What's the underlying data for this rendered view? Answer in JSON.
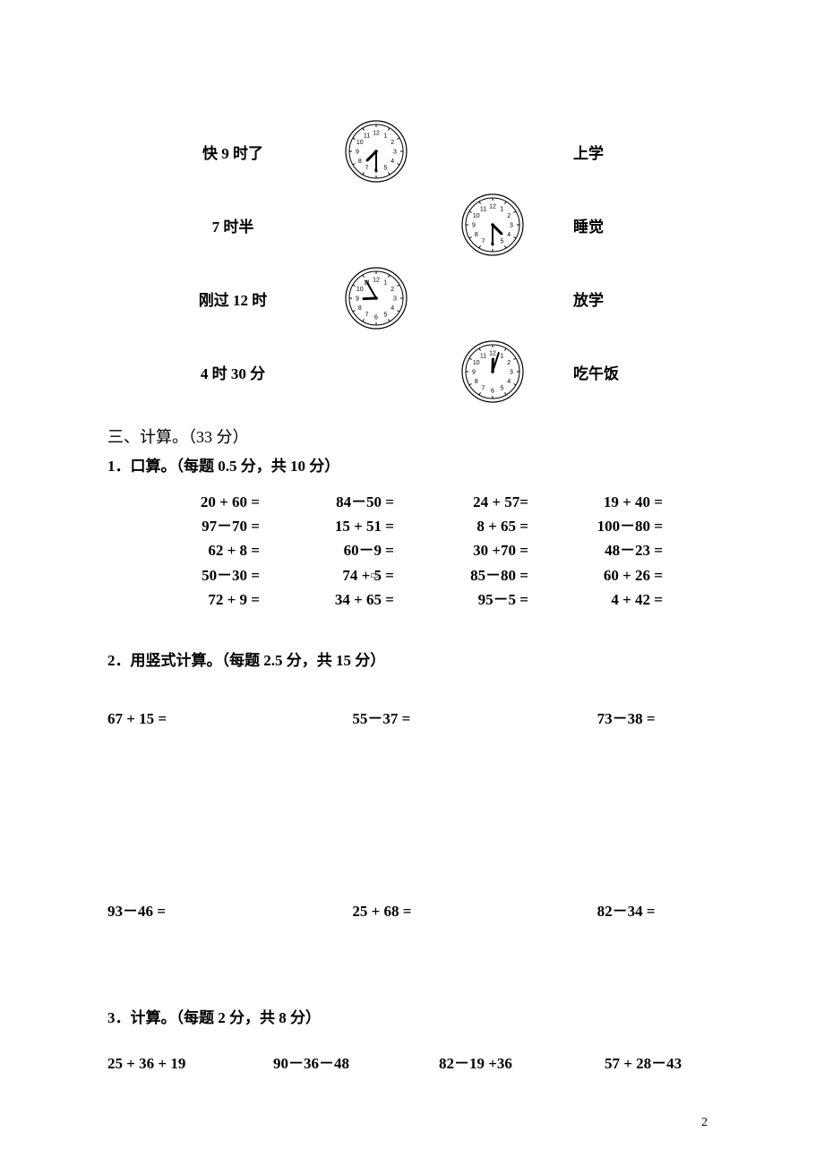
{
  "matching": {
    "row1": {
      "left": "快 9 时了",
      "right": "上学",
      "clockA": {
        "hour": 7,
        "minute": 30
      }
    },
    "row2": {
      "left": "7 时半",
      "right": "睡觉",
      "clockB": {
        "hour": 4,
        "minute": 30
      }
    },
    "row3": {
      "left": "刚过 12 时",
      "right": "放学",
      "clockA": {
        "hour": 8,
        "minute": 55
      }
    },
    "row4": {
      "left": "4 时 30 分",
      "right": "吃午饭",
      "clockB": {
        "hour": 12,
        "minute": 3
      }
    }
  },
  "section3": {
    "heading": "三、计算。（33 分）",
    "part1": {
      "title": "1．口算。（每题 0.5 分，共 10 分）",
      "rows": [
        [
          "20 + 60 =",
          "84－50 =",
          "24 + 57=",
          "19 + 40 ="
        ],
        [
          "97－70 =",
          "15 + 51 =",
          "8 + 65 =",
          "100－80 ="
        ],
        [
          "62 + 8 =",
          "60－9 =",
          "30 +70 =",
          "48－23 ="
        ],
        [
          "50－30 =",
          "74 + 5 =",
          "85－80 =",
          "60 + 26 ="
        ],
        [
          "72 + 9 =",
          "34 + 65 =",
          "95－5 =",
          "4 + 42 ="
        ]
      ]
    },
    "part2": {
      "title": "2．用竖式计算。（每题 2.5 分，共 15 分）",
      "group1": [
        "67 + 15 =",
        "55－37 =",
        "73－38 ="
      ],
      "group2": [
        "93－46 =",
        "25 + 68 =",
        "82－34 ="
      ]
    },
    "part3": {
      "title": "3．计算。（每题 2 分，共 8 分）",
      "items": [
        "25 + 36 + 19",
        "90－36－48",
        "82－19 +36",
        "57 + 28－43"
      ]
    }
  },
  "pageNumber": "2",
  "colors": {
    "bg": "#ffffff",
    "text": "#000000",
    "clockLine": "#000000"
  },
  "clockStyle": {
    "outerR": 34,
    "innerR": 30,
    "tickLen": 3,
    "numFontSize": 7,
    "hourHandLen": 14,
    "minuteHandLen": 22,
    "handWidth": 2
  }
}
